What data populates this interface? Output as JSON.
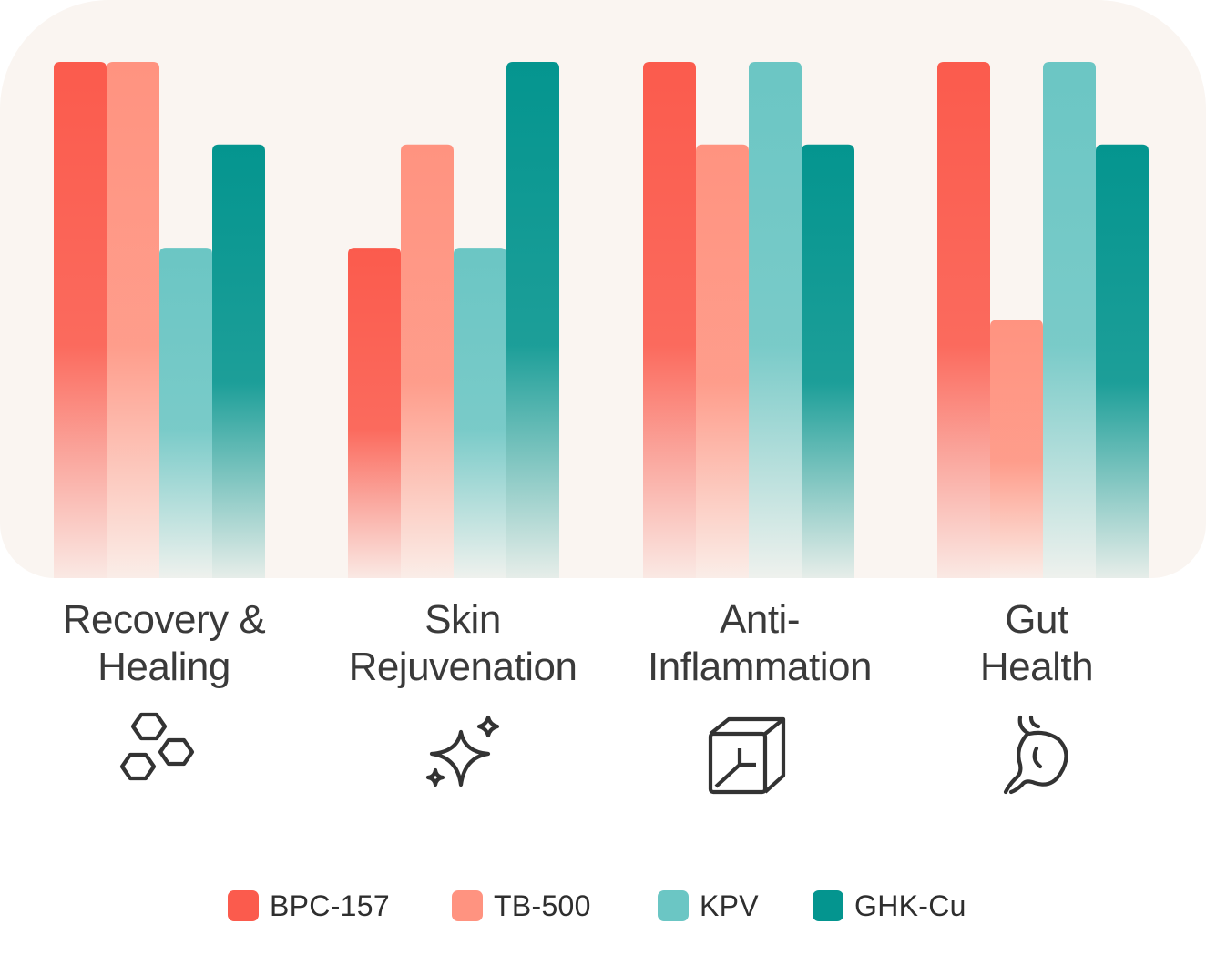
{
  "chart_data": {
    "type": "bar",
    "categories": [
      "Recovery &\nHealing",
      "Skin\nRejuvenation",
      "Anti-\nInflammation",
      "Gut\nHealth"
    ],
    "category_icons": [
      "hexagons-icon",
      "sparkle-icon",
      "cube-icon",
      "stomach-icon"
    ],
    "series": [
      {
        "name": "BPC-157",
        "color": "#fb5b4d",
        "values": [
          5,
          3.2,
          5,
          5
        ]
      },
      {
        "name": "TB-500",
        "color": "#ff9380",
        "values": [
          5,
          4.2,
          4.2,
          2.5
        ]
      },
      {
        "name": "KPV",
        "color": "#6bc6c4",
        "values": [
          3.2,
          3.2,
          5,
          5
        ]
      },
      {
        "name": "GHK-Cu",
        "color": "#04958f",
        "values": [
          4.2,
          5,
          4.2,
          4.2
        ]
      }
    ],
    "ylim": [
      0,
      5
    ],
    "grid": false,
    "legend_position": "bottom"
  }
}
